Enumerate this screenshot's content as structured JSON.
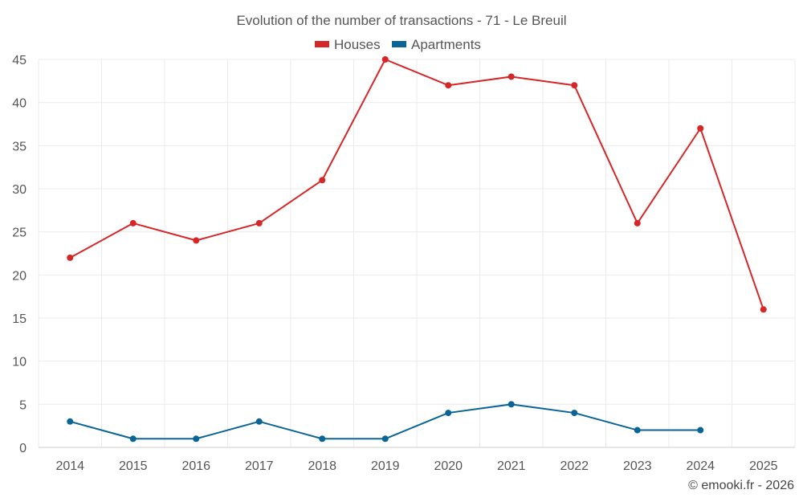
{
  "chart_data": {
    "type": "line",
    "title": "Evolution of the number of transactions - 71 - Le Breuil",
    "categories": [
      "2014",
      "2015",
      "2016",
      "2017",
      "2018",
      "2019",
      "2020",
      "2021",
      "2022",
      "2023",
      "2024",
      "2025"
    ],
    "series": [
      {
        "name": "Houses",
        "color": "#d62728",
        "values": [
          22,
          26,
          24,
          26,
          31,
          45,
          42,
          43,
          42,
          26,
          37,
          16
        ]
      },
      {
        "name": "Apartments",
        "color": "#0b6496",
        "values": [
          3,
          1,
          1,
          3,
          1,
          1,
          4,
          5,
          4,
          2,
          2,
          null
        ]
      }
    ],
    "ylim": [
      0,
      45
    ],
    "yticks": [
      0,
      5,
      10,
      15,
      20,
      25,
      30,
      35,
      40,
      45
    ],
    "xlabel": "",
    "ylabel": "",
    "grid": true,
    "legend": "top-center"
  },
  "credit": "© emooki.fr - 2026"
}
